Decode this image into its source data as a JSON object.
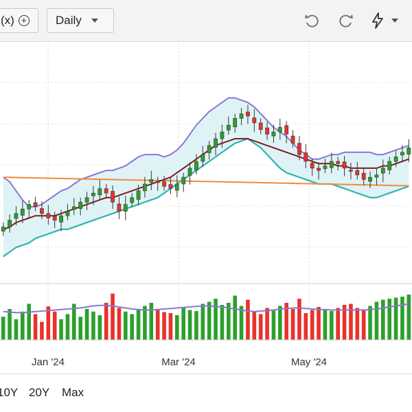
{
  "toolbar": {
    "compare_label": "(x)",
    "compare_plus": "+",
    "interval_label": "Daily",
    "icons": [
      "undo-icon",
      "redo-icon",
      "flash-icon",
      "chevron-down-icon"
    ]
  },
  "range_selector": {
    "items": [
      "10Y",
      "20Y",
      "Max"
    ]
  },
  "chart_data": {
    "type": "candlestick",
    "x_tick_labels": [
      "Jan '24",
      "Mar '24",
      "May '24"
    ],
    "colors": {
      "up": "#2ca02c",
      "down": "#e8322c",
      "bollinger_upper": "#8877d6",
      "bollinger_lower": "#2fb3b0",
      "bollinger_fill": "#dff3f6",
      "sma_short": "#7a2020",
      "sma_long": "#f08a3c",
      "volume_average": "#8877d6"
    },
    "price_series": {
      "close_approx": [
        21,
        24,
        27,
        29,
        31,
        30,
        27,
        25,
        24,
        26,
        28,
        30,
        32,
        34,
        36,
        38,
        36,
        32,
        28,
        31,
        34,
        37,
        40,
        42,
        41,
        39,
        38,
        40,
        43,
        47,
        50,
        53,
        57,
        60,
        63,
        66,
        69,
        71,
        70,
        67,
        64,
        62,
        63,
        65,
        62,
        58,
        53,
        50,
        47,
        46,
        48,
        50,
        49,
        47,
        46,
        44,
        42,
        43,
        44,
        47,
        50,
        52,
        54,
        56
      ],
      "smoothed_ma": [
        20,
        21,
        23,
        24,
        25,
        26,
        26,
        26,
        26,
        27,
        28,
        29,
        30,
        31,
        32,
        33,
        34,
        34,
        35,
        36,
        37,
        38,
        39,
        40,
        41,
        42,
        43,
        45,
        47,
        49,
        51,
        53,
        55,
        57,
        58,
        59,
        60,
        60,
        60,
        59,
        58,
        57,
        56,
        55,
        54,
        53,
        52,
        51,
        50,
        49,
        49,
        49,
        48,
        48,
        47,
        47,
        47,
        47,
        47,
        48,
        48,
        49,
        50,
        51
      ],
      "long_ma_level": 41,
      "bollinger_upper_approx": [
        43,
        41,
        37,
        33,
        30,
        30,
        31,
        33,
        35,
        37,
        38,
        40,
        42,
        43,
        44,
        45,
        46,
        46,
        47,
        48,
        50,
        52,
        53,
        53,
        53,
        52,
        53,
        55,
        58,
        62,
        66,
        69,
        72,
        74,
        76,
        78,
        78,
        77,
        76,
        74,
        71,
        68,
        65,
        63,
        61,
        58,
        55,
        53,
        51,
        51,
        52,
        53,
        53,
        54,
        54,
        54,
        54,
        54,
        53,
        53,
        54,
        55,
        56,
        57
      ],
      "bollinger_lower_approx": [
        8,
        10,
        12,
        13,
        14,
        16,
        17,
        18,
        19,
        20,
        20,
        21,
        22,
        23,
        24,
        25,
        26,
        27,
        28,
        29,
        30,
        31,
        32,
        33,
        34,
        36,
        38,
        40,
        42,
        44,
        46,
        48,
        50,
        52,
        54,
        56,
        58,
        59,
        60,
        58,
        56,
        53,
        50,
        47,
        45,
        44,
        43,
        42,
        41,
        40,
        40,
        40,
        39,
        38,
        37,
        36,
        35,
        34,
        34,
        35,
        36,
        37,
        38,
        39
      ],
      "ylim": [
        0,
        100
      ]
    },
    "volume_series": {
      "relative_volume": [
        45,
        60,
        40,
        55,
        70,
        50,
        35,
        65,
        55,
        40,
        50,
        70,
        45,
        60,
        55,
        48,
        72,
        90,
        62,
        55,
        50,
        58,
        66,
        72,
        60,
        54,
        52,
        48,
        64,
        58,
        56,
        70,
        74,
        80,
        68,
        72,
        86,
        66,
        78,
        54,
        50,
        62,
        58,
        66,
        72,
        60,
        80,
        52,
        58,
        64,
        60,
        56,
        62,
        68,
        70,
        62,
        58,
        66,
        74,
        78,
        80,
        82,
        84,
        88
      ],
      "average_level": [
        55,
        54,
        53,
        53,
        54,
        55,
        56,
        57,
        58,
        59,
        60,
        61,
        62,
        64,
        66,
        67,
        67,
        66,
        64,
        62,
        60,
        59,
        58,
        58,
        59,
        60,
        61,
        62,
        63,
        64,
        65,
        66,
        66,
        65,
        64,
        62,
        60,
        58,
        56,
        55,
        56,
        57,
        58,
        60,
        61,
        62,
        62,
        61,
        60,
        59,
        59,
        58,
        58,
        58,
        58,
        58,
        58,
        59,
        60,
        62,
        64,
        66,
        68,
        70
      ],
      "ylim": [
        0,
        100
      ]
    }
  }
}
